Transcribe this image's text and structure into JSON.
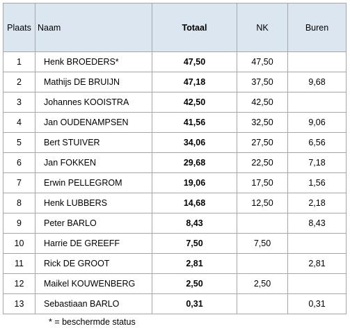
{
  "table": {
    "headers": [
      "Plaats",
      "Naam",
      "Totaal",
      "NK",
      "Buren"
    ],
    "rows": [
      {
        "plaats": "1",
        "naam": "Henk BROEDERS*",
        "totaal": "47,50",
        "nk": "47,50"
      },
      {
        "plaats": "2",
        "naam": "Mathijs DE BRUIJN",
        "totaal": "47,18",
        "nk": "37,50",
        "buren": "9,68"
      },
      {
        "plaats": "3",
        "naam": "Johannes KOOISTRA",
        "totaal": "42,50",
        "nk": "42,50"
      },
      {
        "plaats": "4",
        "naam": "Jan OUDENAMPSEN",
        "totaal": "41,56",
        "nk": "32,50",
        "buren": "9,06"
      },
      {
        "plaats": "5",
        "naam": "Bert STUIVER",
        "totaal": "34,06",
        "nk": "27,50",
        "buren": "6,56"
      },
      {
        "plaats": "6",
        "naam": "Jan FOKKEN",
        "totaal": "29,68",
        "nk": "22,50",
        "buren": "7,18"
      },
      {
        "plaats": "7",
        "naam": "Erwin PELLEGROM",
        "totaal": "19,06",
        "nk": "17,50",
        "buren": "1,56"
      },
      {
        "plaats": "8",
        "naam": "Henk LUBBERS",
        "totaal": "14,68",
        "nk": "12,50",
        "buren": "2,18"
      },
      {
        "plaats": "9",
        "naam": "Peter BARLO",
        "totaal": "8,43",
        "buren": "8,43"
      },
      {
        "plaats": "10",
        "naam": "Harrie DE GREEFF",
        "totaal": "7,50",
        "nk": "7,50"
      },
      {
        "plaats": "11",
        "naam": "Rick DE GROOT",
        "totaal": "2,81",
        "buren": "2,81"
      },
      {
        "plaats": "12",
        "naam": "Maikel KOUWENBERG",
        "totaal": "2,50",
        "nk": "2,50"
      },
      {
        "plaats": "13",
        "naam": "Sebastiaan BARLO",
        "totaal": "0,31",
        "buren": "0,31"
      }
    ]
  },
  "footnote": "* = beschermde status"
}
